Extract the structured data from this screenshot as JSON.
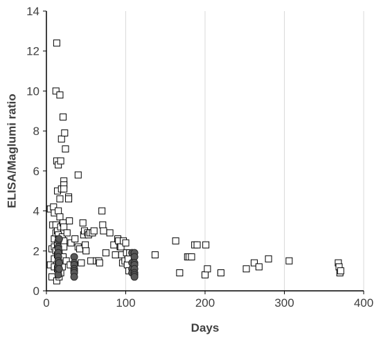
{
  "chart_data": {
    "type": "scatter",
    "title": "",
    "xlabel": "Days",
    "ylabel": "ELISA/Maglumi ratio",
    "xlim": [
      0,
      400
    ],
    "ylim": [
      0,
      14
    ],
    "x_ticks": [
      "0",
      "100",
      "200",
      "300",
      "400"
    ],
    "y_ticks": [
      "0",
      "2",
      "4",
      "6",
      "8",
      "10",
      "12",
      "14"
    ],
    "grid": "vertical",
    "legend": "none",
    "series": [
      {
        "marker": "open-square",
        "color": "#000000",
        "points": [
          [
            5,
            4.1
          ],
          [
            5,
            1.3
          ],
          [
            7,
            2.1
          ],
          [
            7,
            0.7
          ],
          [
            8,
            3.3
          ],
          [
            9,
            4.2
          ],
          [
            10,
            3.9
          ],
          [
            10,
            2.6
          ],
          [
            10,
            2.2
          ],
          [
            10,
            1.6
          ],
          [
            10,
            1.2
          ],
          [
            12,
            10.0
          ],
          [
            12,
            3.3
          ],
          [
            12,
            2.9
          ],
          [
            12,
            2.0
          ],
          [
            13,
            12.4
          ],
          [
            13,
            6.5
          ],
          [
            13,
            0.5
          ],
          [
            14,
            5.0
          ],
          [
            14,
            3.0
          ],
          [
            14,
            2.3
          ],
          [
            14,
            1.8
          ],
          [
            14,
            1.1
          ],
          [
            15,
            6.3
          ],
          [
            15,
            4.0
          ],
          [
            15,
            2.8
          ],
          [
            15,
            1.5
          ],
          [
            16,
            2.6
          ],
          [
            16,
            1.9
          ],
          [
            16,
            0.7
          ],
          [
            17,
            9.8
          ],
          [
            17,
            4.6
          ],
          [
            17,
            3.7
          ],
          [
            17,
            2.2
          ],
          [
            17,
            1.4
          ],
          [
            18,
            6.5
          ],
          [
            18,
            3.2
          ],
          [
            18,
            2.5
          ],
          [
            18,
            1.6
          ],
          [
            18,
            0.9
          ],
          [
            19,
            7.6
          ],
          [
            19,
            5.1
          ],
          [
            20,
            2.7
          ],
          [
            20,
            2.3
          ],
          [
            20,
            1.2
          ],
          [
            21,
            8.7
          ],
          [
            21,
            3.4
          ],
          [
            21,
            1.7
          ],
          [
            22,
            5.5
          ],
          [
            22,
            5.3
          ],
          [
            22,
            5.1
          ],
          [
            22,
            3.2
          ],
          [
            22,
            2.5
          ],
          [
            22,
            2.2
          ],
          [
            23,
            7.9
          ],
          [
            24,
            7.1
          ],
          [
            25,
            1.5
          ],
          [
            26,
            2.9
          ],
          [
            28,
            4.7
          ],
          [
            28,
            4.6
          ],
          [
            29,
            3.5
          ],
          [
            30,
            1.3
          ],
          [
            31,
            2.4
          ],
          [
            36,
            2.6
          ],
          [
            40,
            5.8
          ],
          [
            40,
            2.2
          ],
          [
            42,
            2.1
          ],
          [
            44,
            1.4
          ],
          [
            46,
            3.4
          ],
          [
            47,
            2.8
          ],
          [
            48,
            3.0
          ],
          [
            49,
            2.3
          ],
          [
            50,
            2.0
          ],
          [
            52,
            2.9
          ],
          [
            53,
            2.8
          ],
          [
            55,
            2.9
          ],
          [
            56,
            1.5
          ],
          [
            58,
            2.9
          ],
          [
            60,
            3.0
          ],
          [
            63,
            1.5
          ],
          [
            66,
            1.5
          ],
          [
            67,
            1.4
          ],
          [
            70,
            4.0
          ],
          [
            71,
            3.3
          ],
          [
            72,
            3.0
          ],
          [
            75,
            1.9
          ],
          [
            80,
            2.9
          ],
          [
            85,
            2.3
          ],
          [
            87,
            1.8
          ],
          [
            90,
            2.6
          ],
          [
            91,
            2.5
          ],
          [
            93,
            2.2
          ],
          [
            94,
            2.2
          ],
          [
            95,
            1.8
          ],
          [
            96,
            1.4
          ],
          [
            97,
            2.5
          ],
          [
            99,
            1.5
          ],
          [
            100,
            2.4
          ],
          [
            101,
            1.9
          ],
          [
            102,
            1.3
          ],
          [
            103,
            1.6
          ],
          [
            104,
            1.0
          ],
          [
            105,
            1.9
          ],
          [
            137,
            1.8
          ],
          [
            163,
            2.5
          ],
          [
            168,
            0.9
          ],
          [
            178,
            1.7
          ],
          [
            180,
            1.7
          ],
          [
            183,
            1.7
          ],
          [
            187,
            2.3
          ],
          [
            190,
            2.3
          ],
          [
            200,
            0.8
          ],
          [
            201,
            2.3
          ],
          [
            203,
            1.1
          ],
          [
            220,
            0.9
          ],
          [
            252,
            1.1
          ],
          [
            262,
            1.4
          ],
          [
            268,
            1.2
          ],
          [
            280,
            1.6
          ],
          [
            306,
            1.5
          ],
          [
            368,
            1.4
          ],
          [
            369,
            1.2
          ],
          [
            370,
            0.9
          ],
          [
            371,
            1.0
          ]
        ]
      },
      {
        "marker": "filled-circle",
        "color": "#595959",
        "points": [
          [
            15,
            2.5
          ],
          [
            15,
            2.2
          ],
          [
            15,
            2.1
          ],
          [
            15,
            1.9
          ],
          [
            15,
            1.7
          ],
          [
            15,
            1.5
          ],
          [
            15,
            1.3
          ],
          [
            15,
            1.2
          ],
          [
            15,
            1.0
          ],
          [
            15,
            0.8
          ],
          [
            16,
            2.6
          ],
          [
            16,
            1.4
          ],
          [
            16,
            1.1
          ],
          [
            35,
            1.7
          ],
          [
            35,
            1.4
          ],
          [
            35,
            1.3
          ],
          [
            35,
            1.1
          ],
          [
            35,
            1.0
          ],
          [
            35,
            0.9
          ],
          [
            35,
            0.7
          ],
          [
            108,
            1.9
          ],
          [
            108,
            1.4
          ],
          [
            108,
            1.1
          ],
          [
            108,
            0.9
          ],
          [
            111,
            1.9
          ],
          [
            111,
            1.7
          ],
          [
            111,
            1.4
          ],
          [
            111,
            1.3
          ],
          [
            111,
            1.1
          ],
          [
            111,
            0.9
          ],
          [
            111,
            0.8
          ],
          [
            111,
            0.7
          ]
        ]
      }
    ]
  }
}
